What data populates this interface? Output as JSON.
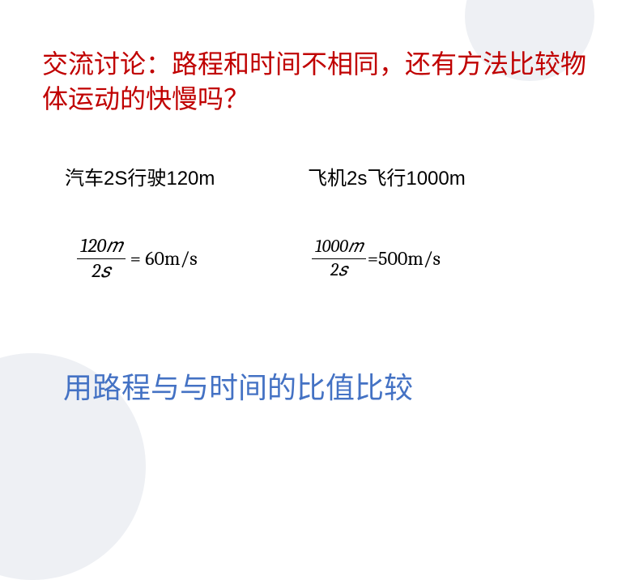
{
  "title": {
    "text": "交流讨论：路程和时间不相同，还有方法比较物体运动的快慢吗？",
    "color": "#c00000",
    "fontsize": 32
  },
  "examples": {
    "car": {
      "label": "汽车2S行驶120m",
      "fontsize": 24,
      "color": "#000000",
      "formula": {
        "num": "120𝑚",
        "den": "2𝑠",
        "result": "= 60m/s",
        "frac_fontsize": 24,
        "result_fontsize": 24
      }
    },
    "plane": {
      "label": "飞机2s飞行1000m",
      "fontsize": 24,
      "color": "#000000",
      "formula": {
        "num": "1000𝑚",
        "den": "2𝑠",
        "result": "=500m/s",
        "frac_fontsize": 22,
        "result_fontsize": 24
      }
    }
  },
  "conclusion": {
    "text": "用路程与与时间的比值比较",
    "color": "#4472c4",
    "fontsize": 36
  },
  "background": {
    "circle_color": "#eef0f4"
  }
}
